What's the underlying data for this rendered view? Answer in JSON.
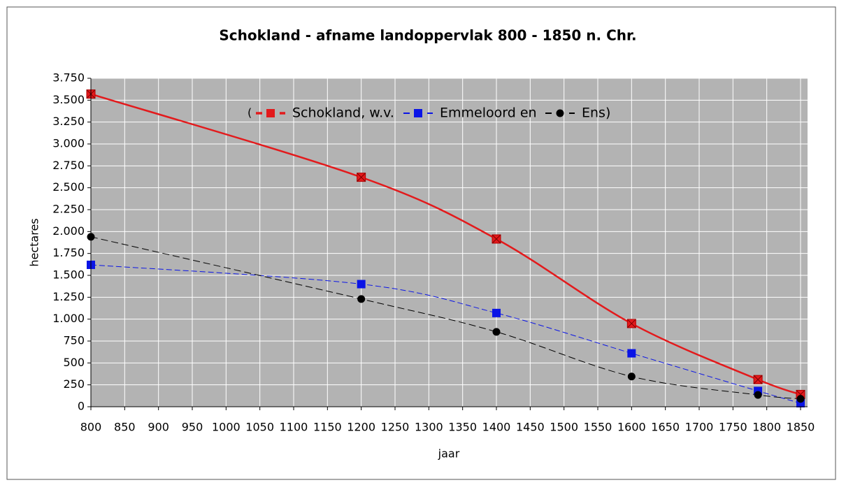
{
  "chart_data": {
    "type": "line",
    "title": "Schokland - afname landoppervlak 800 - 1850 n. Chr.",
    "x_label": "jaar",
    "y_label": "hectares",
    "legend_prefix": "(",
    "x": [
      800,
      1200,
      1400,
      1600,
      1787,
      1850
    ],
    "series": [
      {
        "name": "Schokland, w.v.",
        "color": "#e31a1c",
        "values": [
          3570,
          2620,
          1915,
          950,
          310,
          140
        ]
      },
      {
        "name": "Emmeloord en",
        "color": "#0a14e6",
        "values": [
          1620,
          1400,
          1070,
          610,
          180,
          40
        ]
      },
      {
        "name": "Ens)",
        "color": "#000000",
        "values": [
          1940,
          1230,
          855,
          345,
          135,
          90
        ]
      }
    ],
    "xlim": [
      800,
      1850
    ],
    "xticks": [
      800,
      850,
      900,
      950,
      1000,
      1050,
      1100,
      1150,
      1200,
      1250,
      1300,
      1350,
      1400,
      1450,
      1500,
      1550,
      1600,
      1650,
      1700,
      1750,
      1800,
      1850
    ],
    "ylim": [
      0,
      3750
    ],
    "yticks": [
      0,
      250,
      500,
      750,
      {
        "value": 1000,
        "label": "1.000"
      },
      {
        "value": 1250,
        "label": "1.250"
      },
      {
        "value": 1500,
        "label": "1.500"
      },
      {
        "value": 1750,
        "label": "1.750"
      },
      {
        "value": 2000,
        "label": "2.000"
      },
      {
        "value": 2250,
        "label": "2.250"
      },
      {
        "value": 2500,
        "label": "2.500"
      },
      {
        "value": 2750,
        "label": "2.750"
      },
      {
        "value": 3000,
        "label": "3.000"
      },
      {
        "value": 3250,
        "label": "3.250"
      },
      {
        "value": 3500,
        "label": "3.500"
      },
      {
        "value": 3750,
        "label": "3.750"
      }
    ],
    "grid": true
  }
}
